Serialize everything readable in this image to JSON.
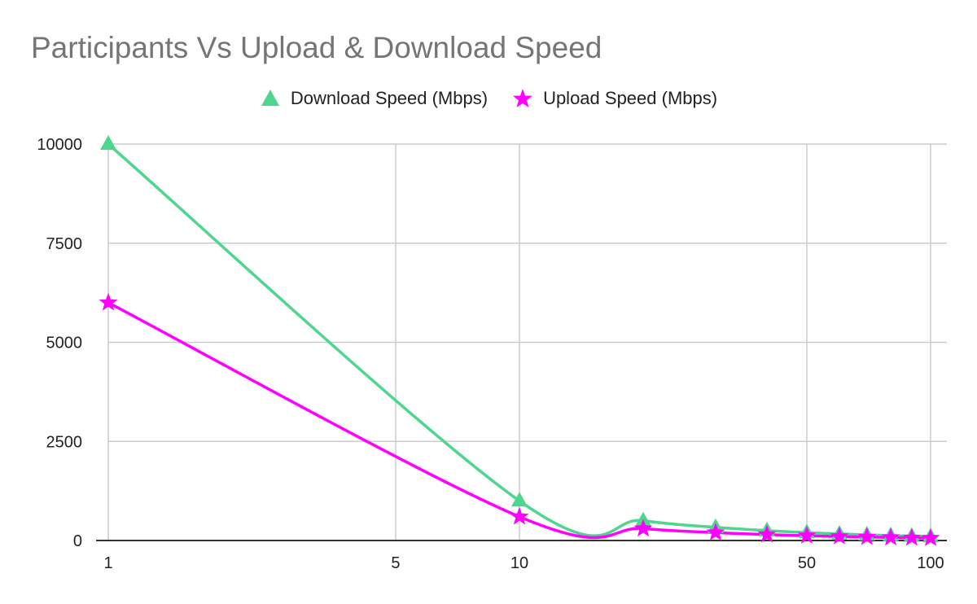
{
  "chart_data": {
    "type": "line",
    "title": "Participants Vs Upload & Download Speed",
    "xlabel": "",
    "ylabel": "",
    "x_scale": "log",
    "xlim": [
      1,
      100
    ],
    "ylim": [
      0,
      10000
    ],
    "x_ticks": [
      1,
      5,
      10,
      50,
      100
    ],
    "y_ticks": [
      0,
      2500,
      5000,
      7500,
      10000
    ],
    "grid": true,
    "legend_position": "top",
    "x": [
      1,
      10,
      20,
      30,
      40,
      50,
      60,
      70,
      80,
      90,
      100
    ],
    "series": [
      {
        "name": "Download Speed (Mbps)",
        "color": "#4fd68e",
        "marker": "triangle",
        "values": [
          10000,
          1000,
          500,
          333,
          250,
          200,
          167,
          143,
          125,
          111,
          100
        ]
      },
      {
        "name": "Upload Speed (Mbps)",
        "color": "#ff00ff",
        "marker": "star",
        "values": [
          6000,
          600,
          300,
          200,
          150,
          120,
          100,
          86,
          75,
          67,
          60
        ]
      }
    ]
  }
}
